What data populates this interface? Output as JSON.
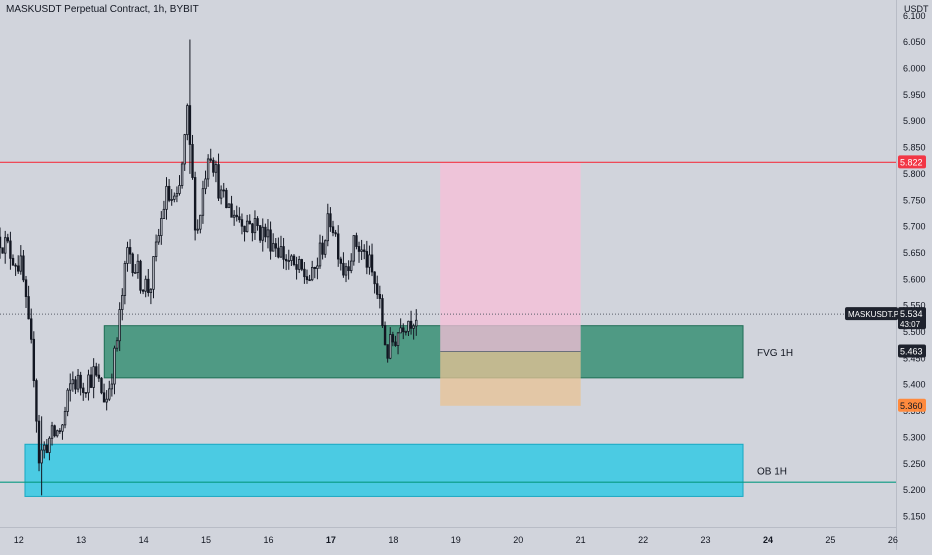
{
  "header": {
    "title": "MASKUSDT Perpetual Contract, 1h, BYBIT",
    "currency_unit": "USDT"
  },
  "colors": {
    "background": "#d1d4dc",
    "candle": "#131722",
    "resistance_line": "#f23645",
    "support_line": "#089981",
    "fvg_zone": "#2e8b6e",
    "ob_zone": "#1ec8e6",
    "target_zone": "#f7bfd8",
    "stop_zone": "#e8c394",
    "entry_badge": "#ff8a3d",
    "badge_dark": "#1e222d"
  },
  "chart_data": {
    "type": "candlestick",
    "title": "MASKUSDT Perpetual Contract, 1h, BYBIT",
    "ylabel": "USDT",
    "ylim": [
      5.13,
      6.13
    ],
    "xlim": [
      11.7,
      26.05
    ],
    "grid": false,
    "y_ticks": [
      "6.100",
      "6.050",
      "6.000",
      "5.950",
      "5.900",
      "5.850",
      "5.800",
      "5.750",
      "5.700",
      "5.650",
      "5.600",
      "5.550",
      "5.500",
      "5.450",
      "5.400",
      "5.350",
      "5.300",
      "5.250",
      "5.200",
      "5.150"
    ],
    "x_ticks": [
      {
        "day": 12,
        "label": "12"
      },
      {
        "day": 13,
        "label": "13"
      },
      {
        "day": 14,
        "label": "14"
      },
      {
        "day": 15,
        "label": "15"
      },
      {
        "day": 16,
        "label": "16"
      },
      {
        "day": 17,
        "label": "17"
      },
      {
        "day": 18,
        "label": "18"
      },
      {
        "day": 19,
        "label": "19"
      },
      {
        "day": 20,
        "label": "20"
      },
      {
        "day": 21,
        "label": "21"
      },
      {
        "day": 22,
        "label": "22"
      },
      {
        "day": 23,
        "label": "23"
      },
      {
        "day": 24,
        "label": "24"
      },
      {
        "day": 25,
        "label": "25"
      },
      {
        "day": 26,
        "label": "26"
      }
    ],
    "bold_x_ticks": [
      "17",
      "24"
    ],
    "path_anchors": [
      {
        "day": 11.7,
        "price": 5.68
      },
      {
        "day": 12.05,
        "price": 5.62
      },
      {
        "day": 12.15,
        "price": 5.51
      },
      {
        "day": 12.25,
        "price": 5.42
      },
      {
        "day": 12.32,
        "price": 5.26
      },
      {
        "day": 12.45,
        "price": 5.29
      },
      {
        "day": 12.7,
        "price": 5.32
      },
      {
        "day": 12.85,
        "price": 5.41
      },
      {
        "day": 13.0,
        "price": 5.4
      },
      {
        "day": 13.2,
        "price": 5.42
      },
      {
        "day": 13.4,
        "price": 5.37
      },
      {
        "day": 13.55,
        "price": 5.46
      },
      {
        "day": 13.75,
        "price": 5.66
      },
      {
        "day": 13.95,
        "price": 5.6
      },
      {
        "day": 14.1,
        "price": 5.58
      },
      {
        "day": 14.35,
        "price": 5.76
      },
      {
        "day": 14.55,
        "price": 5.74
      },
      {
        "day": 14.7,
        "price": 5.91
      },
      {
        "day": 14.85,
        "price": 5.68
      },
      {
        "day": 15.05,
        "price": 5.86
      },
      {
        "day": 15.25,
        "price": 5.75
      },
      {
        "day": 15.5,
        "price": 5.72
      },
      {
        "day": 15.8,
        "price": 5.7
      },
      {
        "day": 16.1,
        "price": 5.67
      },
      {
        "day": 16.4,
        "price": 5.62
      },
      {
        "day": 16.7,
        "price": 5.6
      },
      {
        "day": 17.0,
        "price": 5.72
      },
      {
        "day": 17.2,
        "price": 5.62
      },
      {
        "day": 17.4,
        "price": 5.67
      },
      {
        "day": 17.6,
        "price": 5.63
      },
      {
        "day": 17.75,
        "price": 5.57
      },
      {
        "day": 17.9,
        "price": 5.46
      },
      {
        "day": 18.15,
        "price": 5.52
      },
      {
        "day": 18.4,
        "price": 5.534
      }
    ],
    "wick_extremes": [
      {
        "day": 12.35,
        "high": 5.34,
        "low": 5.19
      },
      {
        "day": 14.75,
        "high": 6.055,
        "low": 5.8
      }
    ],
    "levels": [
      {
        "name": "resistance",
        "price": 5.822
      },
      {
        "name": "support",
        "price": 5.215
      }
    ],
    "zones": [
      {
        "name": "FVG 1H",
        "day_from": 13.37,
        "day_to": 23.6,
        "price_low": 5.413,
        "price_high": 5.512
      },
      {
        "name": "OB 1H",
        "day_from": 12.1,
        "day_to": 23.6,
        "price_low": 5.188,
        "price_high": 5.287
      }
    ],
    "position": {
      "day_from": 18.75,
      "day_to": 21.0,
      "entry": 5.463,
      "target": 5.822,
      "stop": 5.36
    },
    "current_price": {
      "symbol": "MASKUSDT.P",
      "value": "5.534",
      "countdown": "43:07"
    },
    "price_badges": [
      "5.822",
      "5.463",
      "5.360"
    ]
  }
}
